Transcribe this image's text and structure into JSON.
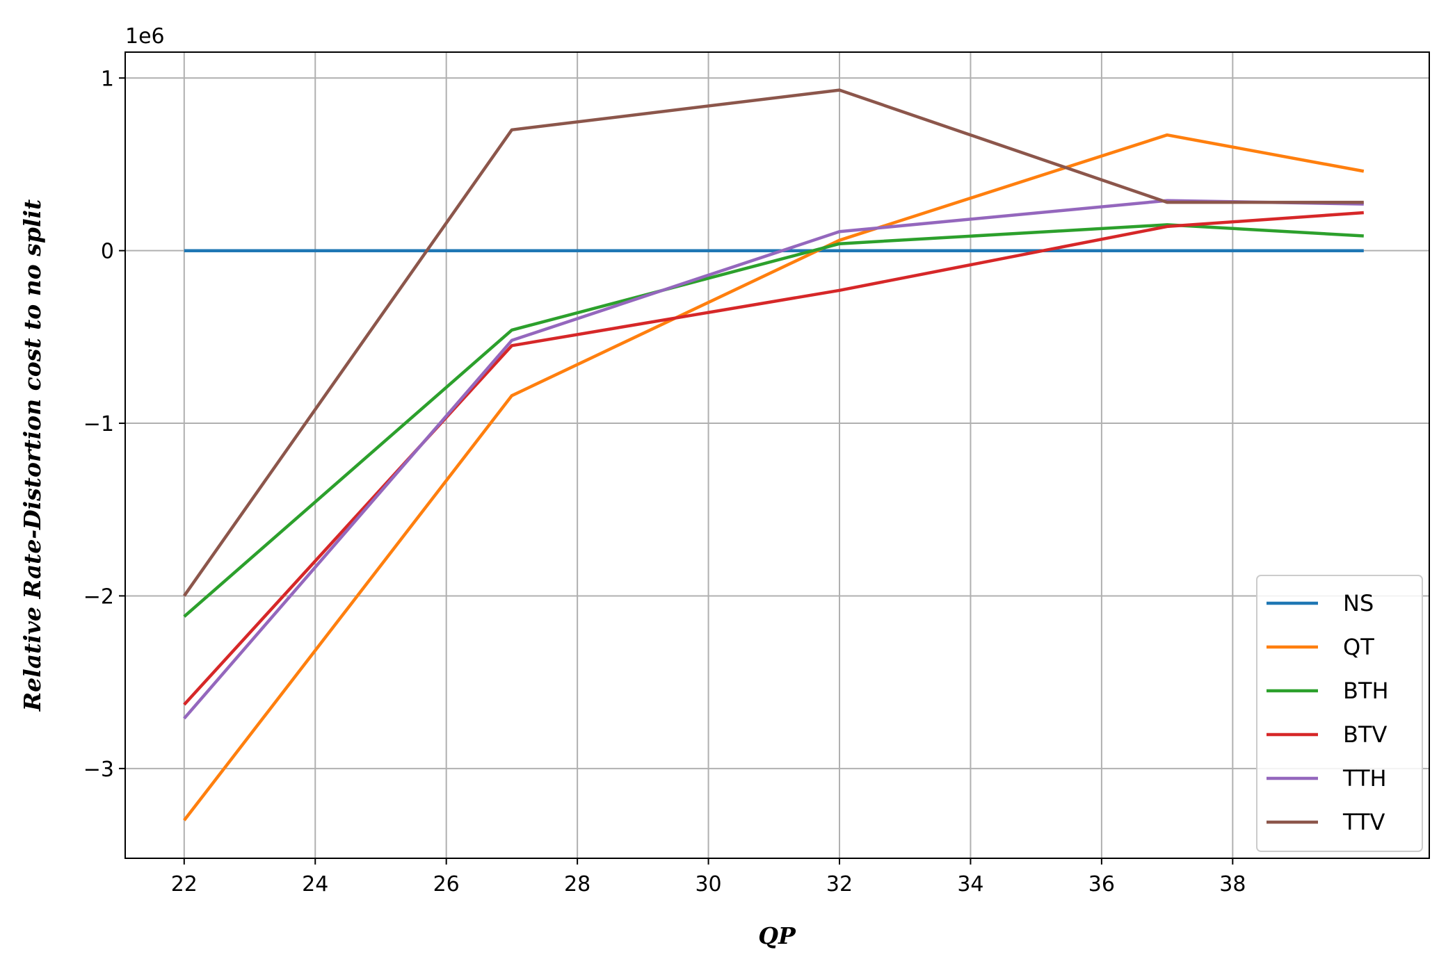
{
  "chart_data": {
    "type": "line",
    "xlabel": "QP",
    "ylabel": "Relative Rate-Distortion cost to no split",
    "y_scale_label": "1e6",
    "xlim": [
      21.1,
      41.0
    ],
    "ylim": [
      -3.52,
      1.15
    ],
    "x_ticks": [
      22,
      24,
      26,
      28,
      30,
      32,
      34,
      36,
      38
    ],
    "x_tick_labels": [
      "22",
      "24",
      "26",
      "28",
      "30",
      "32",
      "34",
      "36",
      "38"
    ],
    "y_ticks": [
      -3,
      -2,
      -1,
      0,
      1
    ],
    "y_tick_labels": [
      "−3",
      "−2",
      "−1",
      "0",
      "1"
    ],
    "grid": true,
    "legend_position": "lower-right",
    "x": [
      22,
      27,
      32,
      37,
      40
    ],
    "series": [
      {
        "name": "NS",
        "color": "#1f77b4",
        "values": [
          0,
          0,
          0,
          0,
          0
        ]
      },
      {
        "name": "QT",
        "color": "#ff7f0e",
        "values": [
          -3.3,
          -0.84,
          0.06,
          0.67,
          0.46
        ]
      },
      {
        "name": "BTH",
        "color": "#2ca02c",
        "values": [
          -2.12,
          -0.46,
          0.04,
          0.15,
          0.085
        ]
      },
      {
        "name": "BTV",
        "color": "#d62728",
        "values": [
          -2.63,
          -0.55,
          -0.23,
          0.14,
          0.22
        ]
      },
      {
        "name": "TTH",
        "color": "#9467bd",
        "values": [
          -2.71,
          -0.52,
          0.11,
          0.29,
          0.27
        ]
      },
      {
        "name": "TTV",
        "color": "#8c564b",
        "values": [
          -2.0,
          0.7,
          0.93,
          0.28,
          0.28
        ]
      }
    ]
  }
}
